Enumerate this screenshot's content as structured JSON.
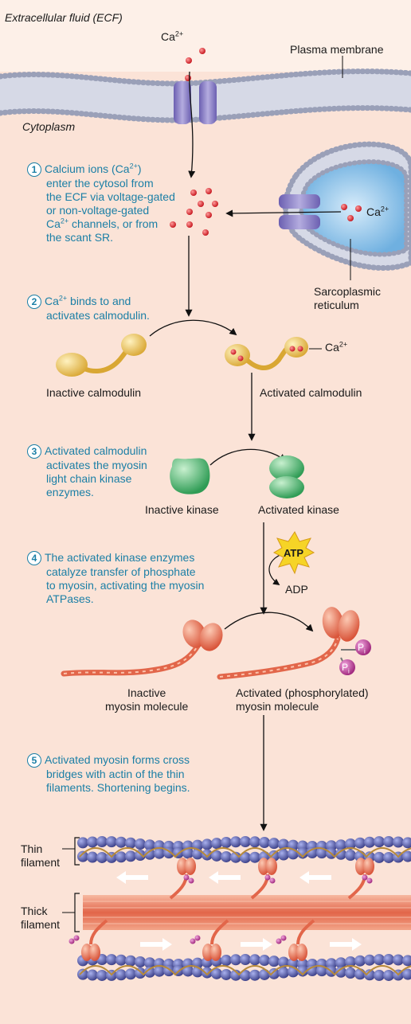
{
  "labels": {
    "ecf": "Extracellular fluid (ECF)",
    "plasma_membrane": "Plasma membrane",
    "cytoplasm": "Cytoplasm",
    "ca_base": "Ca",
    "ca_sup": "2+",
    "sr_line1": "Sarcoplasmic",
    "sr_line2": "reticulum",
    "inactive_calmodulin": "Inactive calmodulin",
    "activated_calmodulin": "Activated calmodulin",
    "inactive_kinase": "Inactive kinase",
    "activated_kinase": "Activated kinase",
    "atp": "ATP",
    "adp": "ADP",
    "pi": "P",
    "pi_sub": "i",
    "inactive_myosin_1": "Inactive",
    "inactive_myosin_2": "myosin molecule",
    "activated_myosin_1": "Activated (phosphorylated)",
    "activated_myosin_2": "myosin molecule",
    "thin_filament_1": "Thin",
    "thin_filament_2": "filament",
    "thick_filament_1": "Thick",
    "thick_filament_2": "filament"
  },
  "steps": [
    {
      "num": "1",
      "lines": [
        "Calcium ions (Ca{2+})",
        "enter the cytosol from",
        "the ECF via voltage-gated",
        "or non-voltage-gated",
        "Ca{2+} channels, or from",
        "the scant SR."
      ]
    },
    {
      "num": "2",
      "lines": [
        "Ca{2+} binds to and",
        "activates calmodulin."
      ]
    },
    {
      "num": "3",
      "lines": [
        "Activated calmodulin",
        "activates the myosin",
        "light chain kinase",
        "enzymes."
      ]
    },
    {
      "num": "4",
      "lines": [
        "The activated kinase enzymes",
        "catalyze transfer of phosphate",
        "to myosin, activating the myosin",
        "ATPases."
      ]
    },
    {
      "num": "5",
      "lines": [
        "Activated myosin forms cross",
        "bridges with actin of the thin",
        "filaments. Shortening begins."
      ]
    }
  ],
  "colors": {
    "background": "#fbe3d7",
    "step_text": "#1b7fa6",
    "calcium": "#d2202b",
    "channel": "#8a7fc4",
    "calmodulin": "#f2cf6a",
    "kinase": "#5fbf7a",
    "myosin": "#ea7a5c",
    "actin": "#4c4f9a",
    "atp_star": "#f6d426",
    "phosphate": "#b0308c"
  }
}
